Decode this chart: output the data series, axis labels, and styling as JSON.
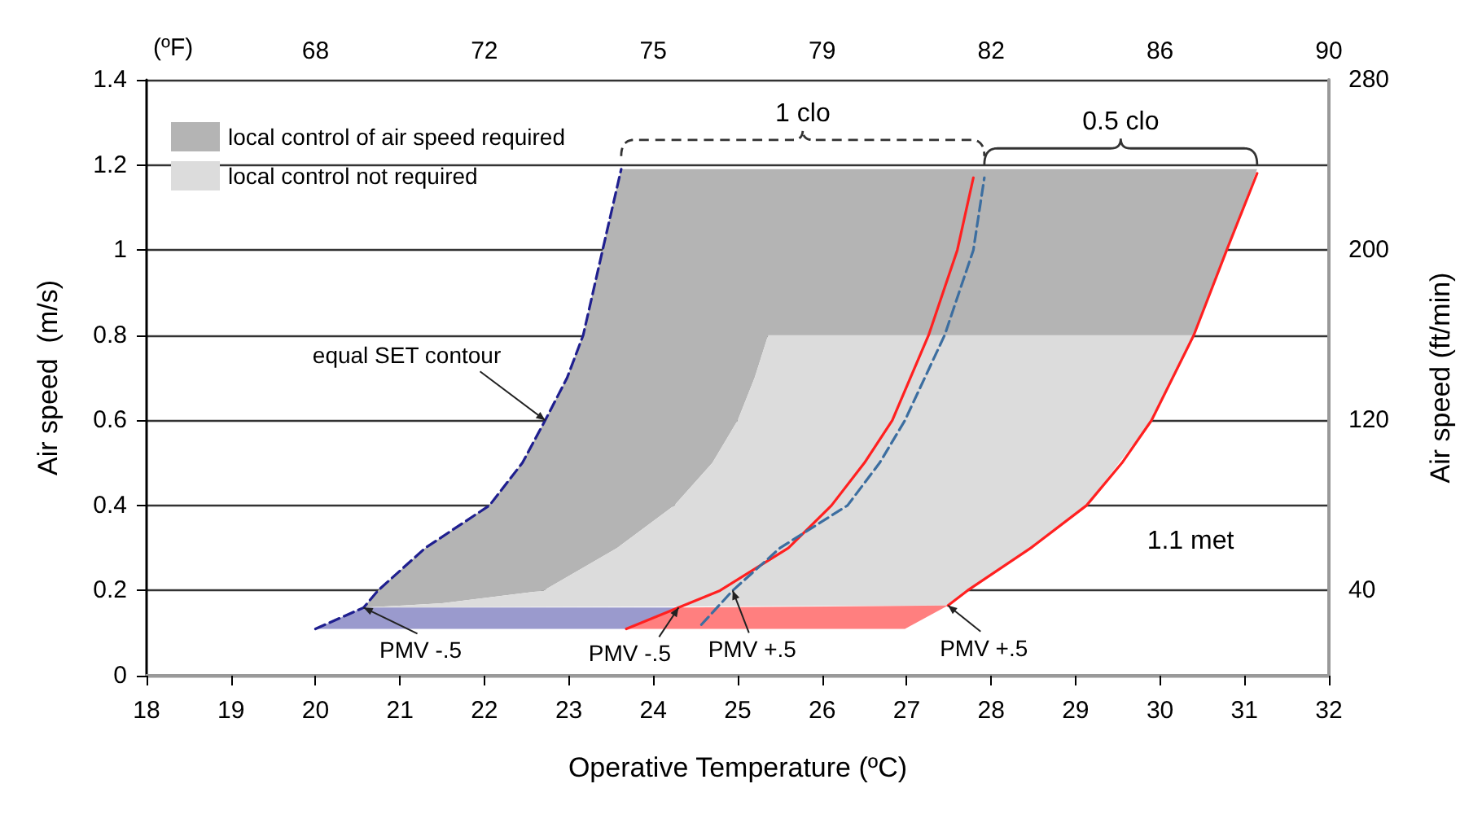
{
  "chart_data": {
    "type": "line",
    "xlabel": "Operative Temperature (ºC)",
    "ylabel": "Air speed  (m/s)",
    "y2label": "Air speed (ft/min)",
    "x2label": "(ºF)",
    "xlim": [
      18,
      32
    ],
    "xticks": [
      18,
      19,
      20,
      21,
      22,
      23,
      24,
      25,
      26,
      27,
      28,
      29,
      30,
      31,
      32
    ],
    "ylim": [
      0,
      1.4
    ],
    "yticks": [
      0,
      0.2,
      0.4,
      0.6,
      0.8,
      1,
      1.2,
      1.4
    ],
    "x2lim": [
      64.4,
      89.6
    ],
    "x2ticks": [
      {
        "value": 68,
        "label": "68"
      },
      {
        "value": 71.6,
        "label": "72"
      },
      {
        "value": 75.2,
        "label": "75"
      },
      {
        "value": 78.8,
        "label": "79"
      },
      {
        "value": 82.4,
        "label": "82"
      },
      {
        "value": 86,
        "label": "86"
      },
      {
        "value": 89.6,
        "label": "90"
      }
    ],
    "y2lim": [
      0,
      280
    ],
    "y2ticks": [
      40,
      120,
      200,
      280
    ],
    "grid": "y",
    "legend": "top left",
    "series": [
      {
        "type": "area",
        "name": "local control of air speed required",
        "color": "#b4b4b4",
        "x": [
          20.57,
          20.74,
          21.3,
          22.06,
          22.45,
          22.72,
          22.98,
          23.17,
          23.4,
          23.62,
          31.15,
          30.79,
          30.4,
          25.36,
          25.2,
          25.0,
          24.7,
          24.25,
          23.57,
          22.7,
          21.5,
          20.57
        ],
        "values": [
          0.16,
          0.2,
          0.3,
          0.4,
          0.5,
          0.6,
          0.7,
          0.8,
          1.0,
          1.19,
          1.19,
          1.0,
          0.8,
          0.8,
          0.7,
          0.6,
          0.5,
          0.4,
          0.3,
          0.2,
          0.17,
          0.16
        ]
      },
      {
        "type": "area",
        "name": "local control not required",
        "color": "#dcdcdc",
        "x": [
          25.36,
          30.4,
          29.9,
          29.13,
          28.47,
          27.72,
          27.49,
          20.57,
          21.5,
          22.7,
          23.57,
          24.25,
          24.7,
          25.0,
          25.2,
          25.36
        ],
        "values": [
          0.8,
          0.8,
          0.6,
          0.4,
          0.3,
          0.2,
          0.165,
          0.16,
          0.17,
          0.2,
          0.3,
          0.4,
          0.5,
          0.6,
          0.7,
          0.8
        ]
      },
      {
        "type": "area",
        "color": "#9a9acd",
        "x": [
          20.0,
          23.68,
          24.3,
          20.57,
          20.0
        ],
        "values": [
          0.11,
          0.11,
          0.16,
          0.16,
          0.11
        ]
      },
      {
        "type": "area",
        "color": "#ff7f7f",
        "x": [
          23.68,
          26.98,
          27.49,
          24.3,
          23.68
        ],
        "values": [
          0.11,
          0.11,
          0.165,
          0.16,
          0.11
        ]
      },
      {
        "color": "#1f1f8f",
        "line_style": "dashed",
        "x": [
          20.0,
          20.57,
          20.74,
          21.3,
          22.06,
          22.45,
          22.72,
          22.98,
          23.17,
          23.4,
          23.62
        ],
        "values": [
          0.11,
          0.16,
          0.2,
          0.3,
          0.4,
          0.5,
          0.6,
          0.7,
          0.8,
          1.0,
          1.19
        ]
      },
      {
        "color": "#ff2020",
        "line_style": "solid",
        "x": [
          23.68,
          24.3,
          24.79,
          25.6,
          26.11,
          26.5,
          26.83,
          27.26,
          27.6,
          27.79
        ],
        "values": [
          0.11,
          0.16,
          0.2,
          0.3,
          0.4,
          0.5,
          0.6,
          0.8,
          1.0,
          1.17
        ]
      },
      {
        "color": "#3c6ea0",
        "line_style": "dashed",
        "x": [
          24.57,
          24.94,
          25.5,
          26.3,
          26.68,
          26.98,
          27.45,
          27.79,
          27.92
        ],
        "values": [
          0.12,
          0.2,
          0.3,
          0.4,
          0.5,
          0.6,
          0.8,
          1.0,
          1.17
        ]
      },
      {
        "color": "#ff2020",
        "line_style": "solid",
        "x": [
          27.49,
          27.72,
          28.47,
          29.13,
          29.55,
          29.9,
          30.4,
          30.79,
          31.15
        ],
        "values": [
          0.165,
          0.2,
          0.3,
          0.4,
          0.5,
          0.6,
          0.8,
          1.0,
          1.18
        ]
      }
    ],
    "annotations": [
      "1 clo",
      "0.5 clo",
      "1.1 met",
      {
        "text": "equal SET contour",
        "x": 22.72,
        "y": 0.6
      },
      {
        "text": "PMV -.5",
        "x": 20.57,
        "y": 0.16
      },
      {
        "text": "PMV -.5",
        "x": 24.3,
        "y": 0.16
      },
      {
        "text": "PMV +.5",
        "x": 24.94,
        "y": 0.2
      },
      {
        "text": "PMV +.5",
        "x": 27.49,
        "y": 0.165
      }
    ]
  }
}
